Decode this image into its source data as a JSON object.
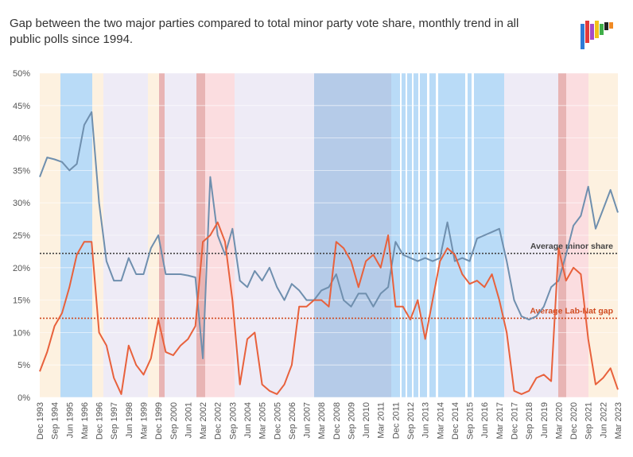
{
  "chart_data": {
    "type": "line",
    "title": [
      "Gap between the two major parties compared to total minor party vote share, monthly trend in all",
      "public polls since 1994."
    ],
    "categories": [
      "Dec 1993",
      null,
      "Sep 1994",
      null,
      "Jun 1995",
      null,
      "Mar 1996",
      null,
      "Dec 1996",
      null,
      "Sep 1997",
      null,
      "Jun 1998",
      null,
      "Mar 1999",
      null,
      "Dec 1999",
      null,
      "Sep 2000",
      null,
      "Jun 2001",
      null,
      "Mar 2002",
      null,
      "Dec 2002",
      null,
      "Sep 2003",
      null,
      "Jun 2004",
      null,
      "Mar 2005",
      null,
      "Dec 2005",
      null,
      "Sep 2006",
      null,
      "Jun 2007",
      null,
      "Mar 2008",
      null,
      "Dec 2008",
      null,
      "Sep 2009",
      null,
      "Jun 2010",
      null,
      "Mar 2011",
      null,
      "Dec 2011",
      null,
      "Sep 2012",
      null,
      "Jun 2013",
      null,
      "Mar 2014",
      null,
      "Dec 2014",
      null,
      "Sep 2015",
      null,
      "Jun 2016",
      null,
      "Mar 2017",
      null,
      "Dec 2017",
      null,
      "Sep 2018",
      null,
      "Jun 2019",
      null,
      "Mar 2020",
      null,
      "Dec 2020",
      null,
      "Sep 2021",
      null,
      "Jun 2022",
      null,
      "Mar 2023"
    ],
    "series": [
      {
        "name": "Minor share",
        "color": "#6f8fae",
        "values": [
          34,
          37,
          36.7,
          36.3,
          35,
          36,
          42,
          44,
          30,
          21,
          18,
          18,
          21.5,
          19,
          19,
          23,
          25,
          19,
          19,
          19,
          18.8,
          18.5,
          6,
          34,
          25,
          22,
          26,
          18,
          17,
          19.5,
          18,
          20,
          17,
          15,
          17.5,
          16.5,
          15,
          15,
          16.5,
          17,
          19,
          15,
          14,
          16,
          16,
          14,
          16,
          17,
          24,
          22,
          21.5,
          21,
          21.5,
          21,
          21.5,
          27,
          21,
          21.5,
          21,
          24.5,
          25,
          25.5,
          26,
          21,
          15,
          12.5,
          12,
          12.5,
          14,
          17,
          18,
          22,
          26.5,
          28,
          32.5,
          26,
          29,
          32,
          28.5
        ]
      },
      {
        "name": "Lab-Nat gap",
        "color": "#e8613c",
        "values": [
          4,
          7,
          11,
          13,
          17,
          22,
          24,
          24,
          10,
          8,
          3,
          0.5,
          8,
          5,
          3.5,
          6,
          12,
          7,
          6.5,
          8,
          9,
          11,
          24,
          25,
          27,
          24,
          15,
          2,
          9,
          10,
          2,
          1,
          0.5,
          2,
          5,
          14,
          14,
          15,
          15,
          14,
          24,
          23,
          21,
          17,
          21,
          22,
          20,
          25,
          14,
          14,
          12,
          15,
          9,
          15,
          21,
          23,
          22,
          19,
          17.5,
          18,
          17,
          19,
          15,
          10,
          1,
          0.5,
          1,
          3,
          3.5,
          2.5,
          23,
          18,
          20,
          19,
          9,
          2,
          3,
          4.5,
          1.2
        ]
      }
    ],
    "averages": [
      {
        "label": "Average minor share",
        "value": 22.2,
        "color": "#444"
      },
      {
        "label": "Average Lab-Nat gap",
        "value": 12.2,
        "color": "#d04a1f"
      }
    ],
    "ylim": [
      0,
      50
    ],
    "yticks": [
      {
        "value": 0,
        "label": "0%"
      },
      {
        "value": 5,
        "label": "5%"
      },
      {
        "value": 10,
        "label": "10%"
      },
      {
        "value": 15,
        "label": "15%"
      },
      {
        "value": 20,
        "label": "20%"
      },
      {
        "value": 25,
        "label": "25%"
      },
      {
        "value": 30,
        "label": "30%"
      },
      {
        "value": 35,
        "label": "35%"
      },
      {
        "value": 40,
        "label": "40%"
      },
      {
        "value": 45,
        "label": "45%"
      },
      {
        "value": 50,
        "label": "50%"
      }
    ],
    "grid": true
  }
}
